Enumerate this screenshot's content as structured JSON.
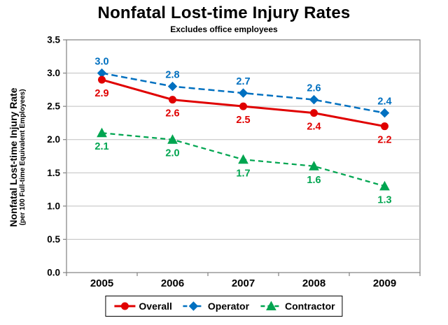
{
  "chart_data": {
    "type": "line",
    "title": "Nonfatal Lost-time Injury Rates",
    "subtitle": "Excludes office employees",
    "ylabel": "Nonfatal Lost-time Injury Rate",
    "ylabel_sub": "(per 100 Full-time Equivalent Employees)",
    "categories": [
      "2005",
      "2006",
      "2007",
      "2008",
      "2009"
    ],
    "ylim": [
      0,
      3.5
    ],
    "yticks": [
      0,
      0.5,
      1,
      1.5,
      2,
      2.5,
      3,
      3.5
    ],
    "ytick_labels": [
      "0.0",
      "0.5",
      "1.0",
      "1.5",
      "2.0",
      "2.5",
      "3.0",
      "3.5"
    ],
    "grid": true,
    "legend_position": "bottom",
    "series": [
      {
        "name": "Overall",
        "color": "#E00000",
        "marker": "circle",
        "line_style": "solid",
        "label_position": "below",
        "values": [
          2.9,
          2.6,
          2.5,
          2.4,
          2.2
        ],
        "labels": [
          "2.9",
          "2.6",
          "2.5",
          "2.4",
          "2.2"
        ]
      },
      {
        "name": "Operator",
        "color": "#0070C0",
        "marker": "diamond",
        "line_style": "dashed",
        "label_position": "above",
        "values": [
          3.0,
          2.8,
          2.7,
          2.6,
          2.4
        ],
        "labels": [
          "3.0",
          "2.8",
          "2.7",
          "2.6",
          "2.4"
        ]
      },
      {
        "name": "Contractor",
        "color": "#00A550",
        "marker": "triangle",
        "line_style": "dashed",
        "label_position": "below",
        "values": [
          2.1,
          2.0,
          1.7,
          1.6,
          1.3
        ],
        "labels": [
          "2.1",
          "2.0",
          "1.7",
          "1.6",
          "1.3"
        ]
      }
    ],
    "colors": {
      "grid": "#BFBFBF",
      "plot_border": "#808080",
      "plot_bg": "#FFFFFF",
      "axis_text": "#000000"
    }
  }
}
